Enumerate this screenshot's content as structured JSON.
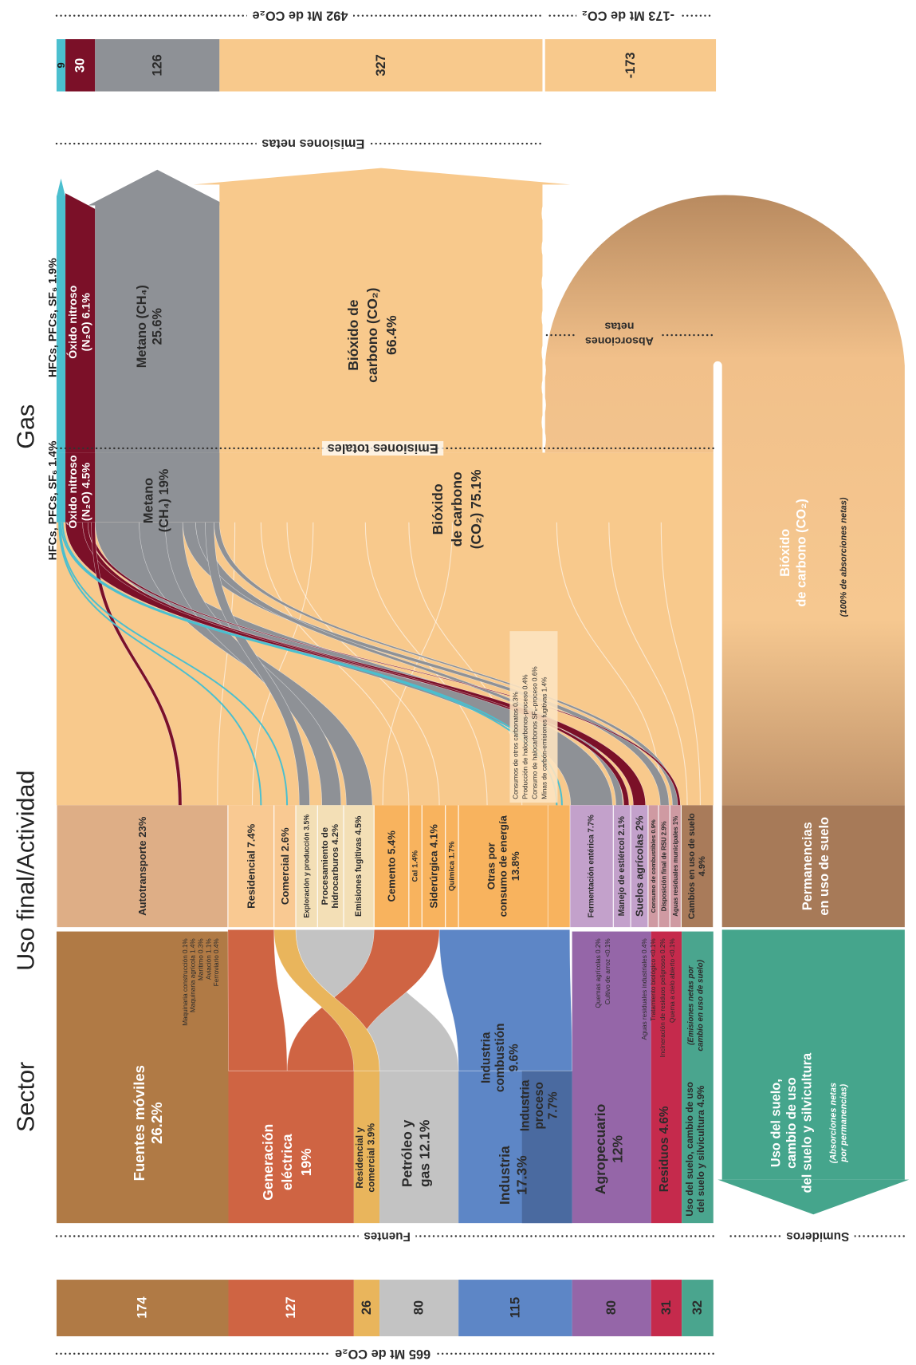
{
  "headers": [
    "Sector",
    "Uso final/Actividad",
    "Gas"
  ],
  "totals": {
    "sources": "665 Mt de CO₂e",
    "net_emissions": "492 Mt de CO₂e",
    "net_absorptions": "-173 Mt de CO₂"
  },
  "dividers": {
    "fuentes": "Fuentes",
    "sumideros": "Sumideros",
    "emisiones_totales": "Emisiones totales",
    "emisiones_netas": "Emisiones netas",
    "absorciones_netas": [
      "Absorciones",
      "netas"
    ]
  },
  "sources": [
    {
      "value": 174,
      "color": "#b07a45",
      "text_color": "#ffffff",
      "label": [
        "Fuentes móviles",
        "26.2%"
      ]
    },
    {
      "value": 127,
      "color": "#cf6443",
      "text_color": "#ffffff",
      "label": [
        "Generación",
        "eléctrica",
        "19%"
      ]
    },
    {
      "value": 26,
      "color": "#e9b55c",
      "text_color": "#2b2b2b",
      "label": [
        "Residencial y",
        "comercial 3.9%"
      ]
    },
    {
      "value": 80,
      "color": "#c3c3c3",
      "text_color": "#2b2b2b",
      "label": [
        "Petróleo y",
        "gas 12.1%"
      ]
    },
    {
      "value": 115,
      "color": "#5d86c6",
      "text_color": "#2b2b2b",
      "label": [
        "Industria",
        "17.3%"
      ]
    },
    {
      "value": 80,
      "color": "#9566a8",
      "text_color": "#2b2b2b",
      "label": [
        "Agropecuario",
        "12%"
      ]
    },
    {
      "value": 31,
      "color": "#c52a4c",
      "text_color": "#2b2b2b",
      "label": [
        "Residuos 4.6%"
      ]
    },
    {
      "value": 32,
      "color": "#4aa58e",
      "text_color": "#2b2b2b",
      "label": [
        "Uso del suelo, cambio de uso",
        "del suelo y silvicultura 4.9%"
      ]
    }
  ],
  "industry_parts": [
    [
      "Industria",
      "combustión",
      "9.6%"
    ],
    [
      "Industria",
      "proceso",
      "7.7%"
    ]
  ],
  "land_note": [
    "(Emisiones netas por",
    "cambio en uso de suelo)"
  ],
  "transport_details": [
    "Maquinaria construcción 0.1%",
    "Maquinaria agrícola 1.4%",
    "Marítimo 0.3%",
    "Aviación 1.1%",
    "Ferroviario 0.4%"
  ],
  "activities": [
    {
      "label": [
        "Autotransporte 23%"
      ],
      "color": "#deae86"
    },
    {
      "label": [
        "Residencial 7.4%"
      ],
      "color": "#f9c992"
    },
    {
      "label": [
        "Comercial 2.6%"
      ],
      "color": "#f9c992"
    },
    {
      "label": [
        "Exploración y producción 3.5%"
      ],
      "color": "#f3dfb6"
    },
    {
      "label": [
        "Procesamiento de",
        "hidrocarburos 4.2%"
      ],
      "color": "#f3dfb6"
    },
    {
      "label": [
        "Emisiones fugitivas 4.5%"
      ],
      "color": "#f3dfb6"
    },
    {
      "label": [
        "Cemento 5.4%"
      ],
      "color": "#f8b35e"
    },
    {
      "label": [
        "Cal 1.4%"
      ],
      "color": "#f8b35e"
    },
    {
      "label": [
        "Siderúrgica 4.1%"
      ],
      "color": "#f8b35e"
    },
    {
      "label": [
        "Química 1.7%"
      ],
      "color": "#f8b35e"
    },
    {
      "label": [
        "Otras por",
        "consumo de energía",
        "13.8%"
      ],
      "color": "#f8b35e"
    },
    {
      "label": [
        "Fermentación entérica 7.7%"
      ],
      "color": "#c3a1cb"
    },
    {
      "label": [
        "Manejo de estiércol 2.1%"
      ],
      "color": "#c3a1cb"
    },
    {
      "label": [
        "Suelos agrícolas 2%"
      ],
      "color": "#c3a1cb"
    },
    {
      "label": [
        "Consumo de combustibles 0.9%"
      ],
      "color": "#cf9aa2"
    },
    {
      "label": [
        "Disposición final de RSU 2.9%"
      ],
      "color": "#cf9aa2"
    },
    {
      "label": [
        "Aguas residuales municipales 1%"
      ],
      "color": "#cf9aa2"
    },
    {
      "label": [
        "Cambios en uso de suelo",
        "4.9%"
      ],
      "color": "#a97b5a"
    }
  ],
  "industry_details": [
    "Consumos de otros carbonatos 0.3%",
    "Producción de halocarbonos-proceso 0.4%",
    "Consumo de halocarbonos SF₆-proceso 0.6%",
    "Minas de carbón-emisiones fugitivas 1.4%"
  ],
  "agro_details": [
    "Quemas agrícolas 0.2%",
    "Cultivo de arroz <0.1%",
    "Aguas residuales industriales 0.4%"
  ],
  "waste_details": [
    "Tratamiento biológico <0.1%",
    "Incineración de residuos peligrosos 0.2%",
    "Quema a cielo abierto <0.1%"
  ],
  "gases_total": [
    {
      "name": [
        "HFCs, PFCs, SF₆ 1.4%"
      ],
      "color": "#4bbfcf",
      "text_color": "#1a1a1a"
    },
    {
      "name": [
        "Óxido nitroso",
        "(N₂O) 4.5%"
      ],
      "color": "#7b1028",
      "text_color": "#ffffff"
    },
    {
      "name": [
        "Metano",
        "(CH₄) 19%"
      ],
      "color": "#8e9196",
      "text_color": "#2b2b2b"
    },
    {
      "name": [
        "Bióxido",
        "de carbono",
        "(CO₂) 75.1%"
      ],
      "color": "#f8c98c",
      "text_color": "#2b2b2b"
    }
  ],
  "gases_net": [
    {
      "value": 9,
      "name": [
        "HFCs, PFCs, SF₆ 1.9%"
      ],
      "color": "#4bbfcf",
      "text_color": "#1a1a1a"
    },
    {
      "value": 30,
      "name": [
        "Óxido nitroso",
        "(N₂O) 6.1%"
      ],
      "color": "#7b1028",
      "text_color": "#ffffff"
    },
    {
      "value": 126,
      "name": [
        "Metano (CH₄)",
        "25.6%"
      ],
      "color": "#8e9196",
      "text_color": "#2b2b2b"
    },
    {
      "value": 327,
      "name": [
        "Bióxido de",
        "carbono (CO₂)",
        "66.4%"
      ],
      "color": "#f8c98c",
      "text_color": "#2b2b2b"
    }
  ],
  "absorption": {
    "value": -173,
    "color": "#f8c98c",
    "label": [
      "Bióxido",
      "de carbono (CO₂)"
    ],
    "note": "(100% de absorciones netas)"
  },
  "permanence": {
    "color": "#a77a58",
    "label": [
      "Permanencias",
      "en uso de suelo"
    ]
  },
  "sink": {
    "color": "#45a58c",
    "label": [
      "Uso del suelo,",
      "cambio de uso",
      "del suelo y silvicultura"
    ],
    "note": [
      "(Absorciones netas",
      "por permanencias)"
    ]
  }
}
